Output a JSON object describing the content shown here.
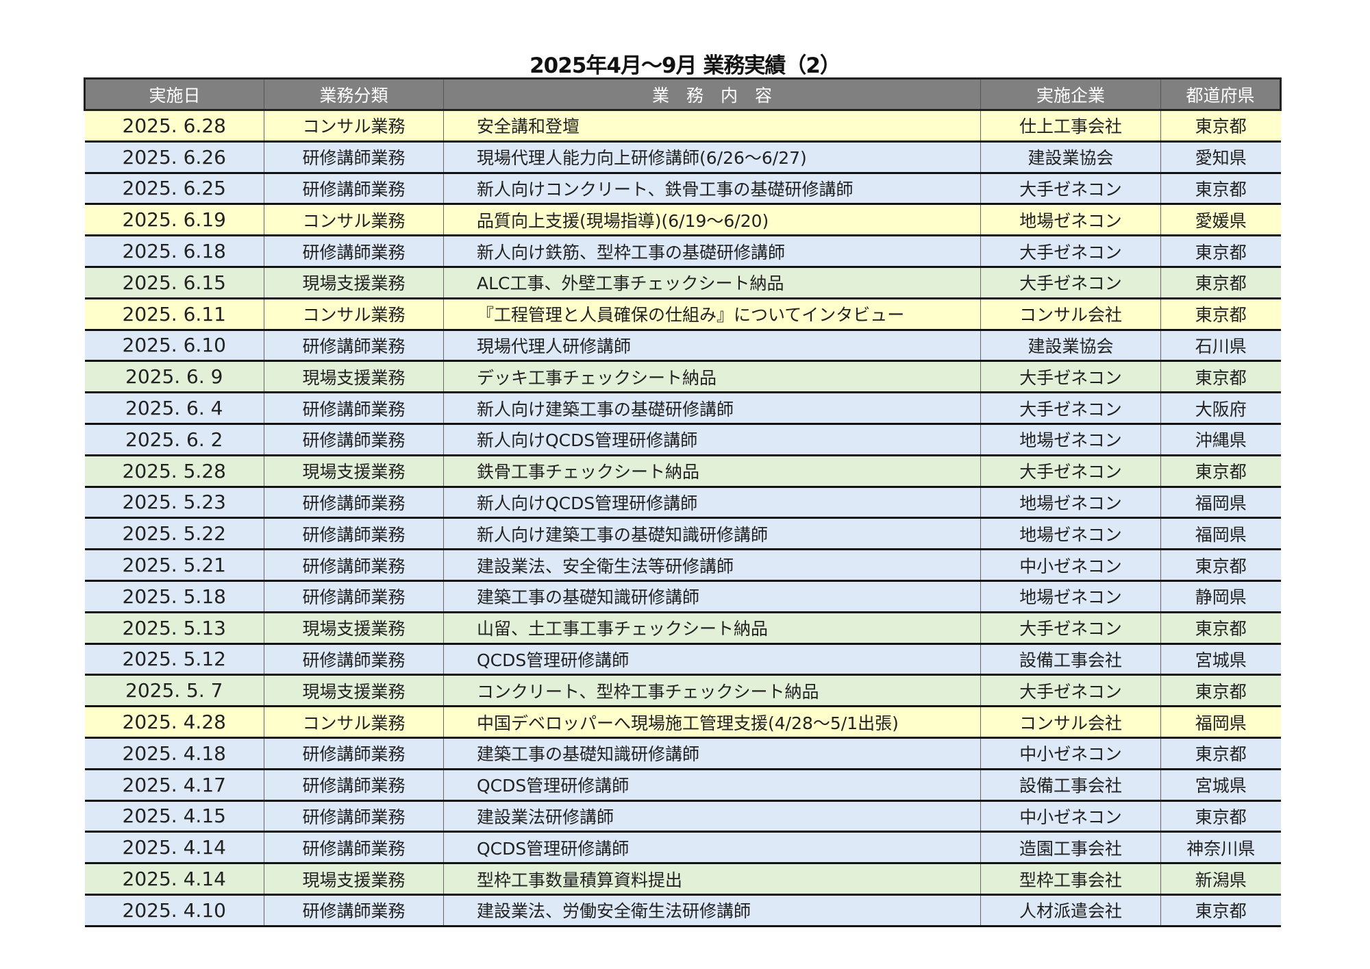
{
  "title": "2025年4月〜9月 業務実績（2）",
  "columns": [
    "実施日",
    "業務分類",
    "業　務　内　容",
    "実施企業",
    "都道府県"
  ],
  "colors": {
    "header": "#808080",
    "consult": "#ffffcc",
    "training": "#dde9f6",
    "support": "#e3f0d8"
  },
  "rows": [
    {
      "date": "2025. 6.28",
      "category": "コンサル業務",
      "type": "consult",
      "content": "安全講和登壇",
      "company": "仕上工事会社",
      "pref": "東京都"
    },
    {
      "date": "2025. 6.26",
      "category": "研修講師業務",
      "type": "training",
      "content": "現場代理人能力向上研修講師(6/26〜6/27)",
      "company": "建設業協会",
      "pref": "愛知県"
    },
    {
      "date": "2025. 6.25",
      "category": "研修講師業務",
      "type": "training",
      "content": "新人向けコンクリート、鉄骨工事の基礎研修講師",
      "company": "大手ゼネコン",
      "pref": "東京都"
    },
    {
      "date": "2025. 6.19",
      "category": "コンサル業務",
      "type": "consult",
      "content": "品質向上支援(現場指導)(6/19〜6/20)",
      "company": "地場ゼネコン",
      "pref": "愛媛県"
    },
    {
      "date": "2025. 6.18",
      "category": "研修講師業務",
      "type": "training",
      "content": "新人向け鉄筋、型枠工事の基礎研修講師",
      "company": "大手ゼネコン",
      "pref": "東京都"
    },
    {
      "date": "2025. 6.15",
      "category": "現場支援業務",
      "type": "support",
      "content": "ALC工事、外壁工事チェックシート納品",
      "company": "大手ゼネコン",
      "pref": "東京都"
    },
    {
      "date": "2025. 6.11",
      "category": "コンサル業務",
      "type": "consult",
      "content": "『工程管理と人員確保の仕組み』についてインタビュー",
      "company": "コンサル会社",
      "pref": "東京都"
    },
    {
      "date": "2025. 6.10",
      "category": "研修講師業務",
      "type": "training",
      "content": "現場代理人研修講師",
      "company": "建設業協会",
      "pref": "石川県"
    },
    {
      "date": "2025. 6.  9",
      "category": "現場支援業務",
      "type": "support",
      "content": "デッキ工事チェックシート納品",
      "company": "大手ゼネコン",
      "pref": "東京都"
    },
    {
      "date": "2025. 6.  4",
      "category": "研修講師業務",
      "type": "training",
      "content": "新人向け建築工事の基礎研修講師",
      "company": "大手ゼネコン",
      "pref": "大阪府"
    },
    {
      "date": "2025. 6.  2",
      "category": "研修講師業務",
      "type": "training",
      "content": "新人向けQCDS管理研修講師",
      "company": "地場ゼネコン",
      "pref": "沖縄県"
    },
    {
      "date": "2025. 5.28",
      "category": "現場支援業務",
      "type": "support",
      "content": "鉄骨工事チェックシート納品",
      "company": "大手ゼネコン",
      "pref": "東京都"
    },
    {
      "date": "2025. 5.23",
      "category": "研修講師業務",
      "type": "training",
      "content": "新人向けQCDS管理研修講師",
      "company": "地場ゼネコン",
      "pref": "福岡県"
    },
    {
      "date": "2025. 5.22",
      "category": "研修講師業務",
      "type": "training",
      "content": "新人向け建築工事の基礎知識研修講師",
      "company": "地場ゼネコン",
      "pref": "福岡県"
    },
    {
      "date": "2025. 5.21",
      "category": "研修講師業務",
      "type": "training",
      "content": "建設業法、安全衛生法等研修講師",
      "company": "中小ゼネコン",
      "pref": "東京都"
    },
    {
      "date": "2025. 5.18",
      "category": "研修講師業務",
      "type": "training",
      "content": "建築工事の基礎知識研修講師",
      "company": "地場ゼネコン",
      "pref": "静岡県"
    },
    {
      "date": "2025. 5.13",
      "category": "現場支援業務",
      "type": "support",
      "content": "山留、土工事工事チェックシート納品",
      "company": "大手ゼネコン",
      "pref": "東京都"
    },
    {
      "date": "2025. 5.12",
      "category": "研修講師業務",
      "type": "training",
      "content": "QCDS管理研修講師",
      "company": "設備工事会社",
      "pref": "宮城県"
    },
    {
      "date": "2025. 5.  7",
      "category": "現場支援業務",
      "type": "support",
      "content": "コンクリート、型枠工事チェックシート納品",
      "company": "大手ゼネコン",
      "pref": "東京都"
    },
    {
      "date": "2025. 4.28",
      "category": "コンサル業務",
      "type": "consult",
      "content": "中国デベロッパーへ現場施工管理支援(4/28〜5/1出張)",
      "company": "コンサル会社",
      "pref": "福岡県"
    },
    {
      "date": "2025. 4.18",
      "category": "研修講師業務",
      "type": "training",
      "content": "建築工事の基礎知識研修講師",
      "company": "中小ゼネコン",
      "pref": "東京都"
    },
    {
      "date": "2025. 4.17",
      "category": "研修講師業務",
      "type": "training",
      "content": "QCDS管理研修講師",
      "company": "設備工事会社",
      "pref": "宮城県"
    },
    {
      "date": "2025. 4.15",
      "category": "研修講師業務",
      "type": "training",
      "content": "建設業法研修講師",
      "company": "中小ゼネコン",
      "pref": "東京都"
    },
    {
      "date": "2025. 4.14",
      "category": "研修講師業務",
      "type": "training",
      "content": "QCDS管理研修講師",
      "company": "造園工事会社",
      "pref": "神奈川県"
    },
    {
      "date": "2025. 4.14",
      "category": "現場支援業務",
      "type": "support",
      "content": "型枠工事数量積算資料提出",
      "company": "型枠工事会社",
      "pref": "新潟県"
    },
    {
      "date": "2025. 4.10",
      "category": "研修講師業務",
      "type": "training",
      "content": "建設業法、労働安全衛生法研修講師",
      "company": "人材派遣会社",
      "pref": "東京都"
    }
  ]
}
